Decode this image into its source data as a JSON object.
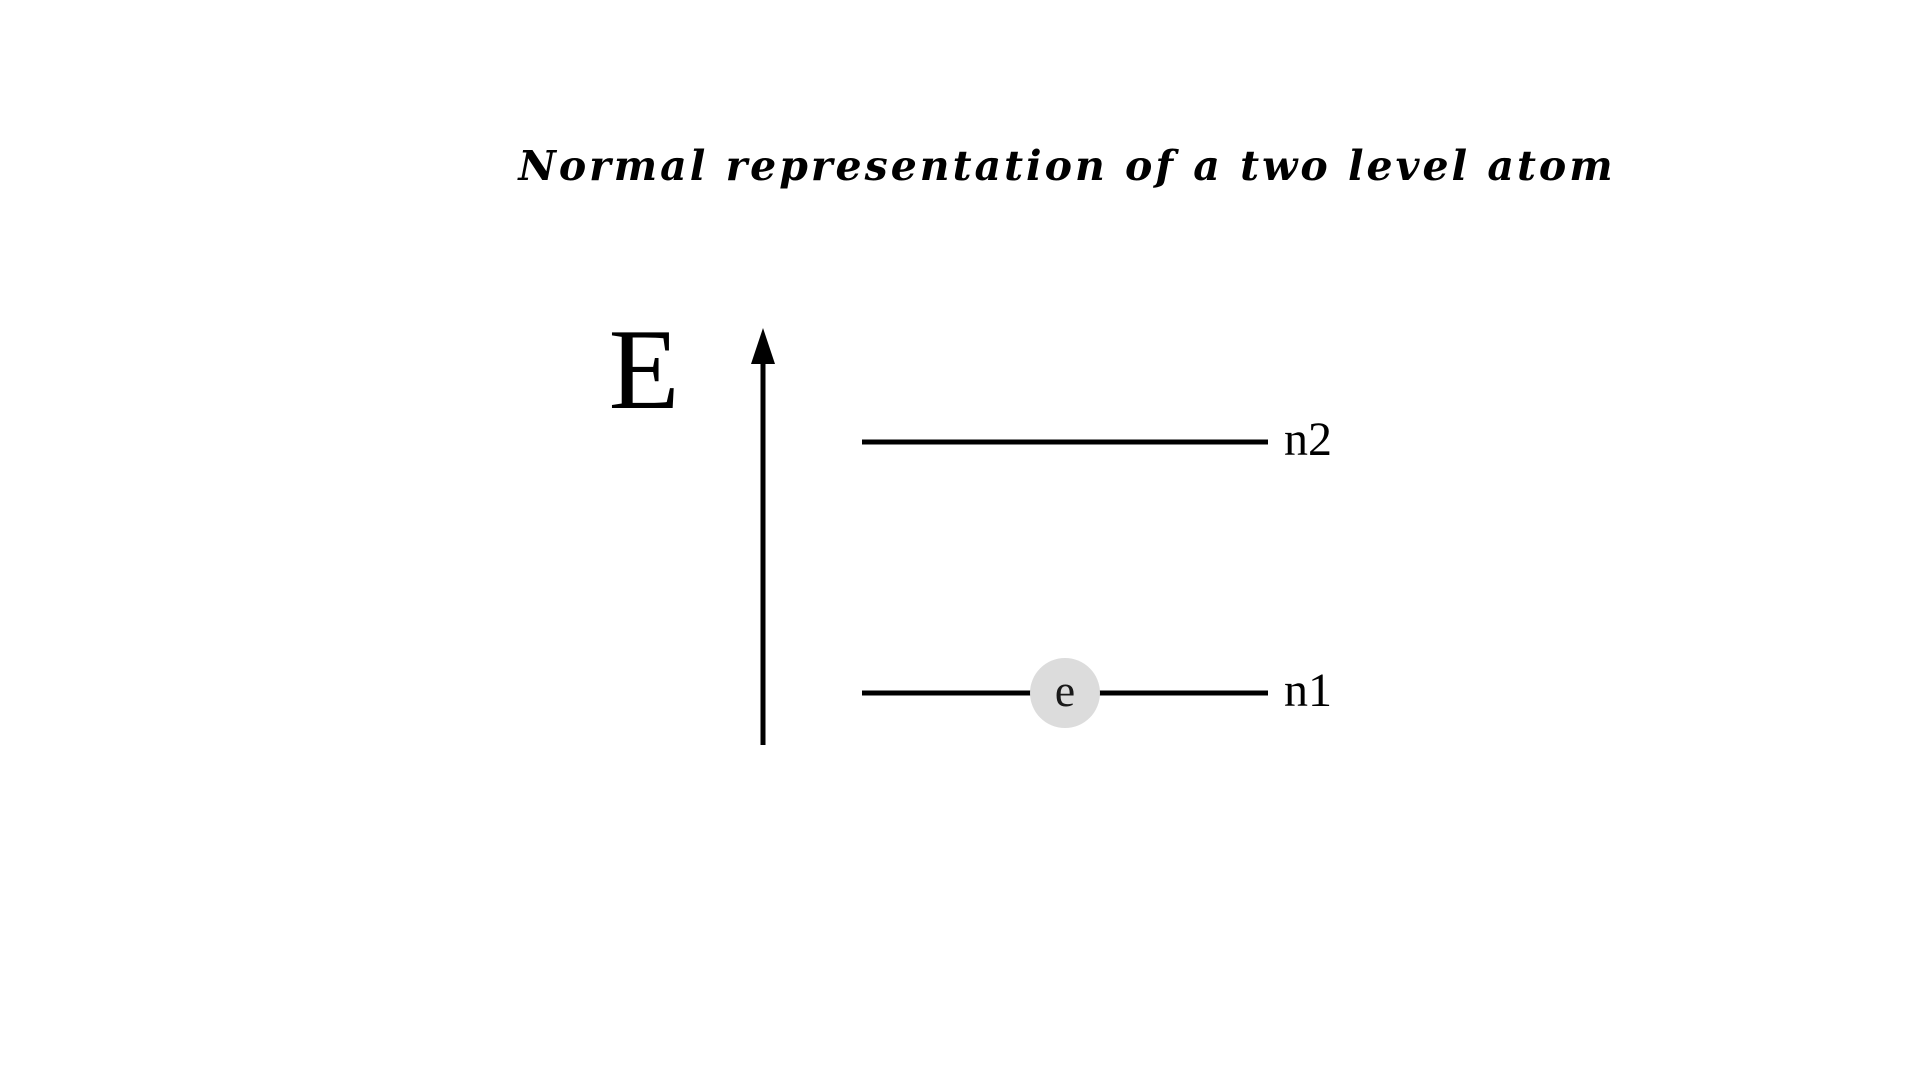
{
  "title": "Normal representation of a two level atom",
  "axis": {
    "label": "E"
  },
  "levels": [
    {
      "label": "n2"
    },
    {
      "label": "n1"
    }
  ],
  "electron": {
    "label": "e",
    "fill_color": "#dcdcdc",
    "level": "n1"
  },
  "colors": {
    "line": "#000000",
    "background": "#ffffff"
  }
}
